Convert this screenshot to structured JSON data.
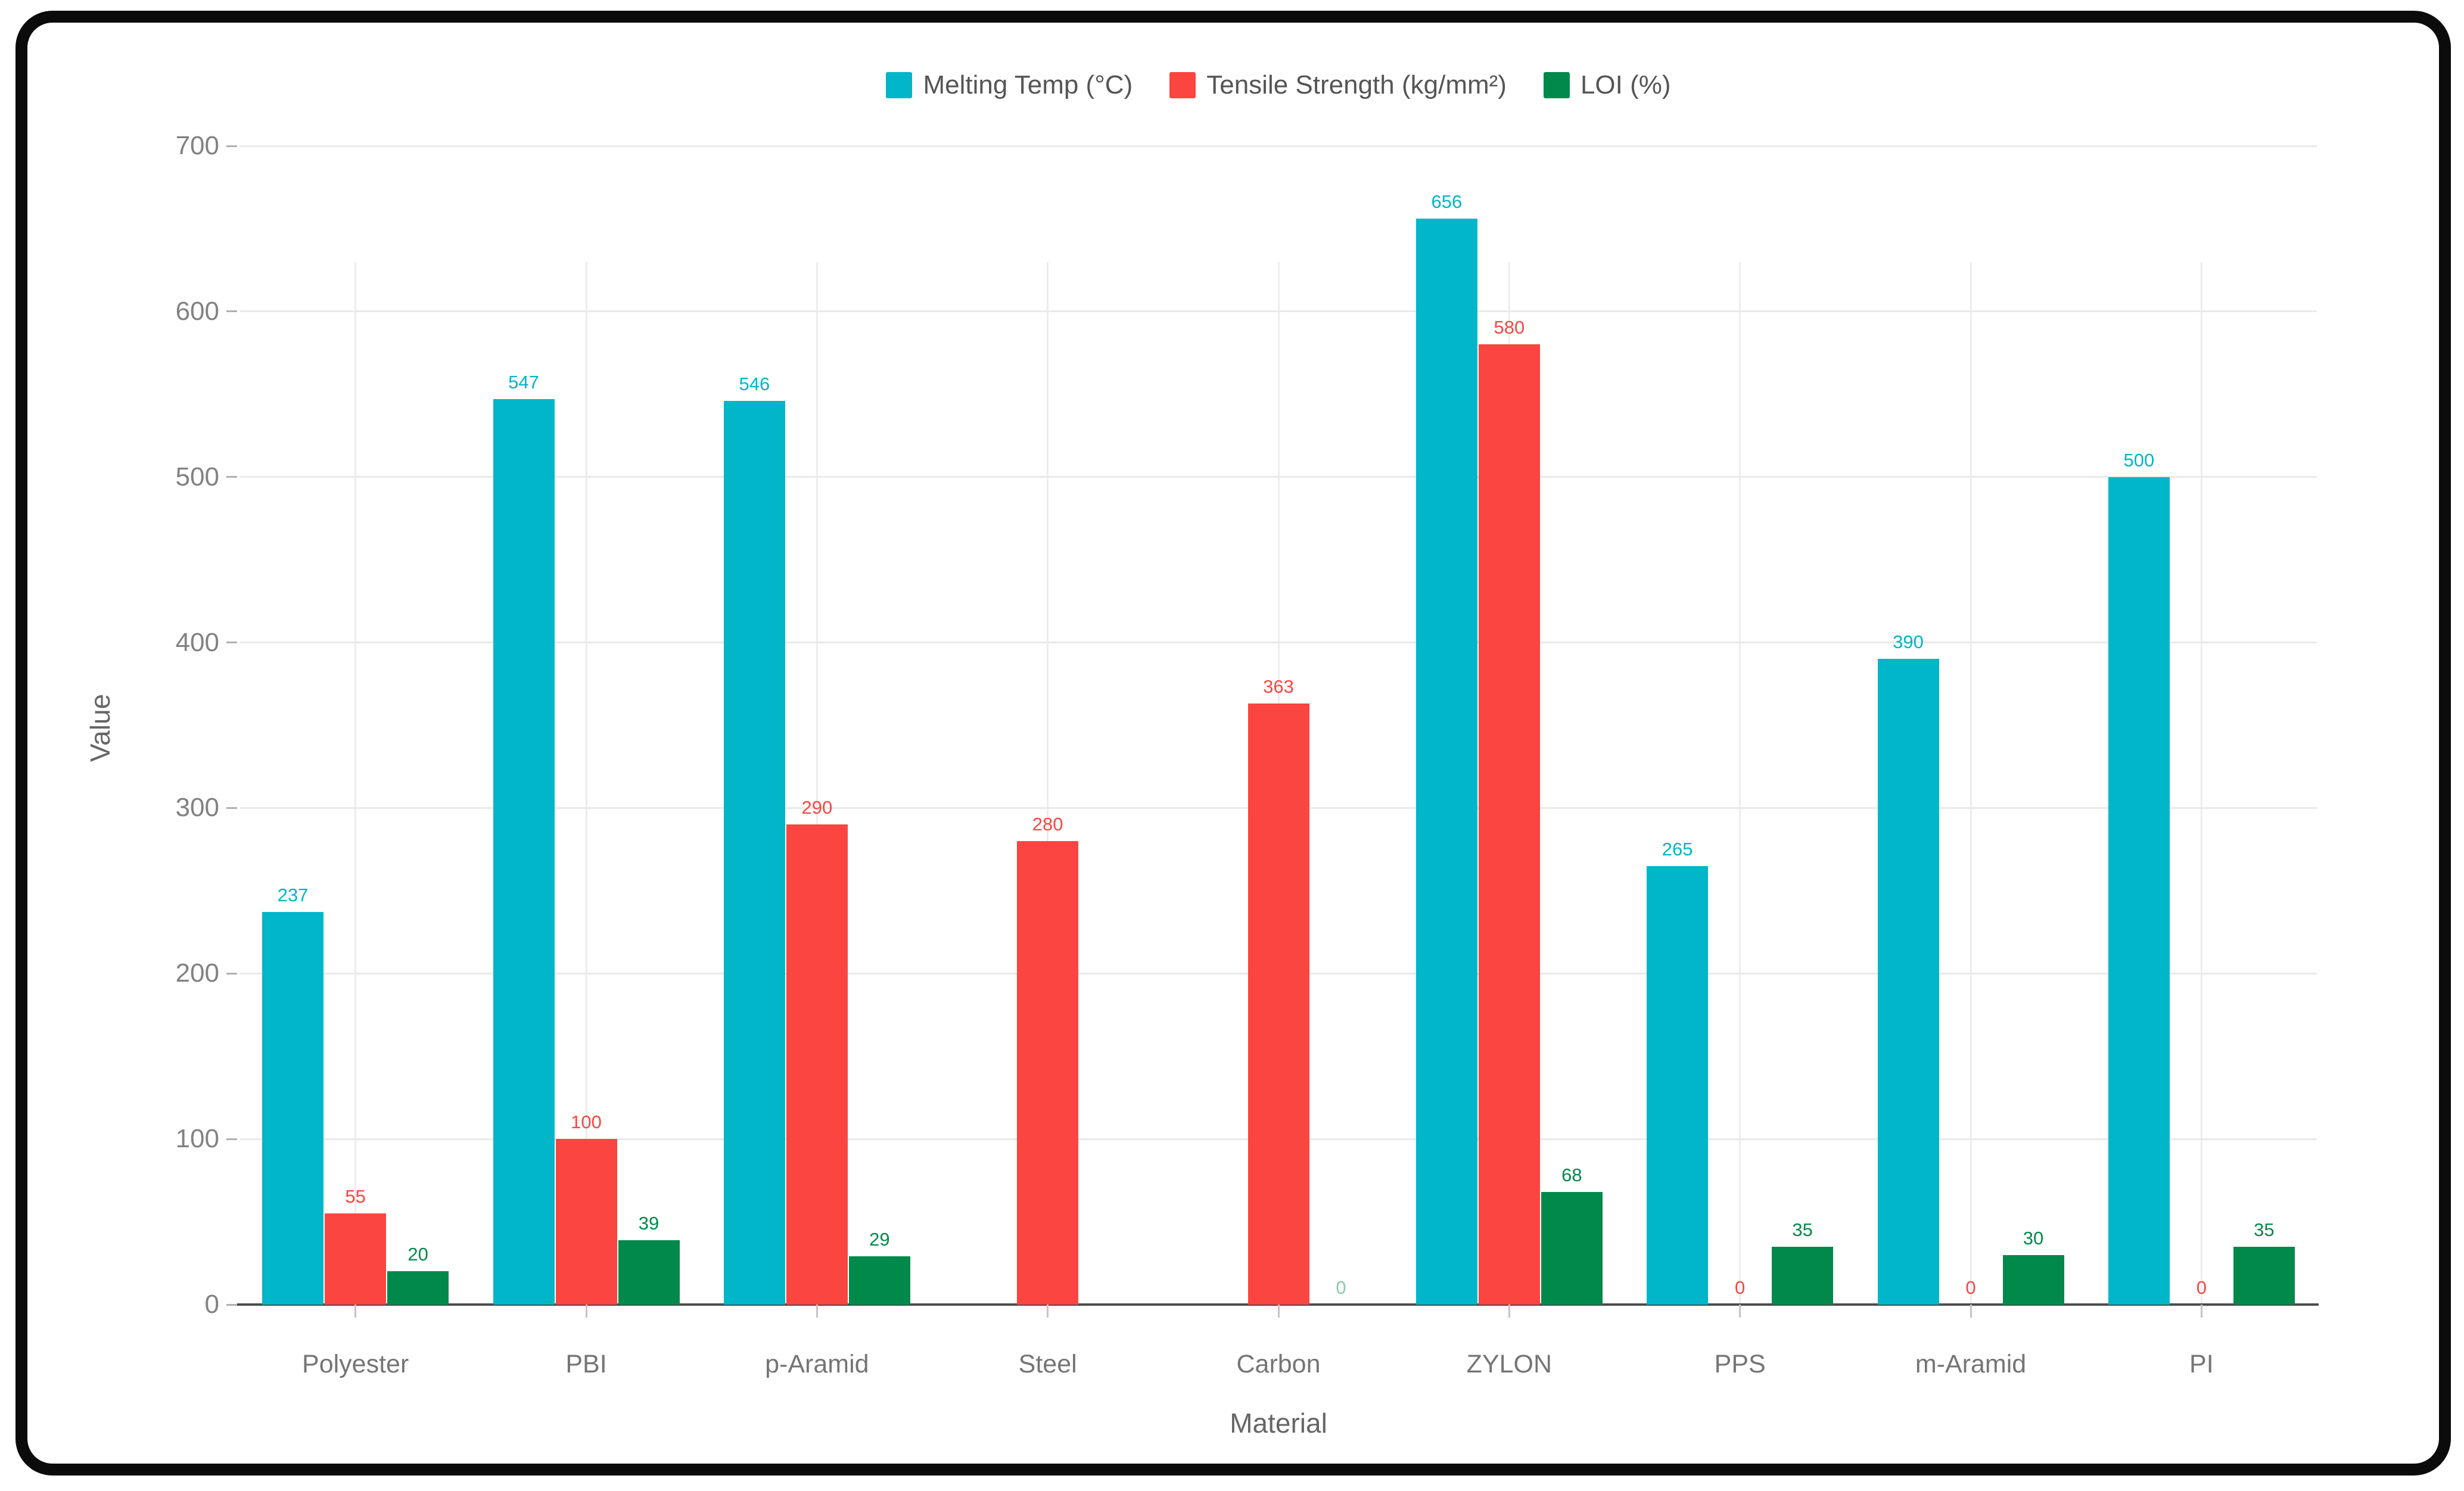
{
  "chart_data": {
    "type": "bar",
    "title": "",
    "xlabel": "Material",
    "ylabel": "Value",
    "ylim": [
      0,
      700
    ],
    "yticks": [
      0,
      100,
      200,
      300,
      400,
      500,
      600,
      700
    ],
    "grid": true,
    "legend_position": "top",
    "categories": [
      "Polyester",
      "PBI",
      "p-Aramid",
      "Steel",
      "Carbon",
      "ZYLON",
      "PPS",
      "m-Aramid",
      "PI"
    ],
    "series": [
      {
        "name": "Melting Temp (°C)",
        "color": "#00b6c8",
        "values": [
          237,
          547,
          546,
          null,
          null,
          656,
          265,
          390,
          500
        ]
      },
      {
        "name": "Tensile Strength (kg/mm²)",
        "color": "#fa4540",
        "values": [
          55,
          100,
          290,
          280,
          363,
          580,
          0,
          0,
          0
        ]
      },
      {
        "name": "LOI (%)",
        "color": "#00894b",
        "values": [
          20,
          39,
          29,
          null,
          0,
          68,
          35,
          30,
          35
        ]
      }
    ],
    "faint_labels": [
      {
        "series_index": 2,
        "category_index": 4
      }
    ],
    "axis_colors": {
      "grid_h": "#e9e9e9",
      "grid_v": "#ededed",
      "axis_line": "#4c4c4c",
      "tick_label": "#828282",
      "category_label": "#757575",
      "axis_title": "#666666",
      "legend_text": "#555555"
    }
  }
}
